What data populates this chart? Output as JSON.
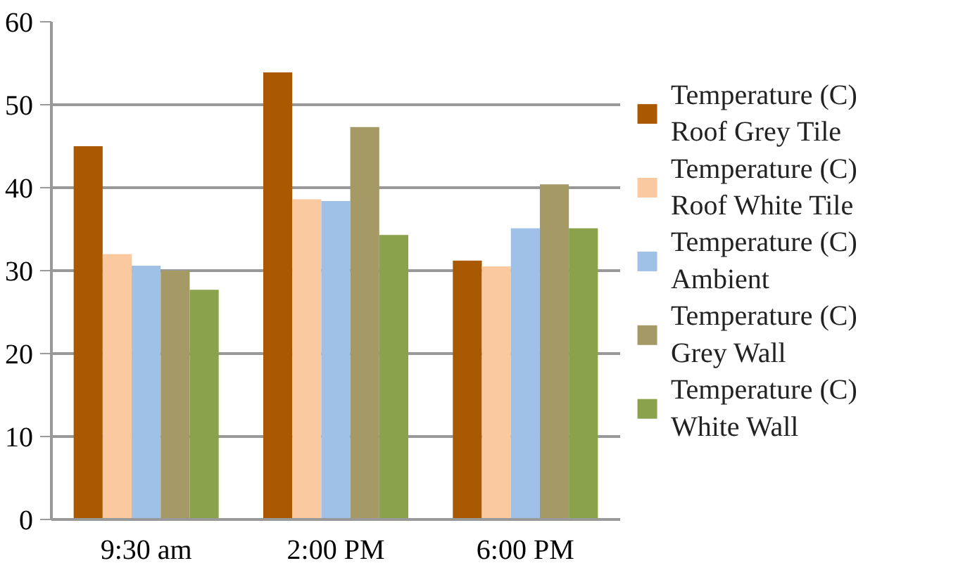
{
  "chart_data": {
    "type": "bar",
    "categories": [
      "9:30 am",
      "2:00 PM",
      "6:00 PM"
    ],
    "series": [
      {
        "name": "Temperature (C) Roof Grey Tile",
        "color": "#a95a00",
        "values": [
          45.0,
          53.9,
          31.2
        ]
      },
      {
        "name": "Temperature (C) Roof White Tile",
        "color": "#fbc99f",
        "values": [
          32.0,
          38.6,
          30.5
        ]
      },
      {
        "name": "Temperature (C) Ambient",
        "color": "#9fc1e8",
        "values": [
          30.6,
          38.4,
          35.1
        ]
      },
      {
        "name": "Temperature (C) Grey Wall",
        "color": "#a59966",
        "values": [
          30.0,
          47.3,
          40.4
        ]
      },
      {
        "name": "Temperature (C) White Wall",
        "color": "#89a24b",
        "values": [
          27.7,
          34.3,
          35.1
        ]
      }
    ],
    "ylim": [
      0,
      60
    ],
    "yticks": [
      0,
      10,
      20,
      30,
      40,
      50,
      60
    ],
    "grid": "y",
    "legend": "right"
  }
}
